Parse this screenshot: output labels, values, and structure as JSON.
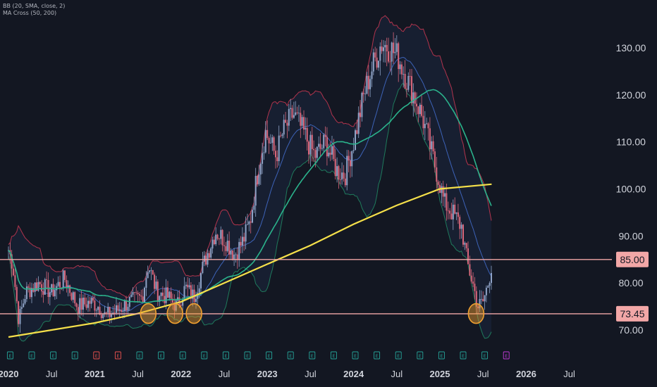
{
  "legend": {
    "bb": "BB (20, SMA, close, 2)",
    "ma": "MA Cross (50, 200)"
  },
  "colors": {
    "background": "#131722",
    "candle_up": "#8fa3c7",
    "candle_down": "#d9667a",
    "bb_upper": "#b2344d",
    "bb_lower": "#1f7a5c",
    "bb_basis": "#3d63b8",
    "bb_fill": "#1a2437",
    "ma_fast": "#2bb38c",
    "ma_slow": "#f5e04a",
    "level_line": "#f2a7a7",
    "highlight": "#f0a030",
    "earn_green": "#26a69a",
    "earn_red": "#ef5350",
    "earn_purple": "#c63bdc"
  },
  "chart_data": {
    "type": "candlestick",
    "y_range": [
      65,
      138
    ],
    "y_ticks": [
      "130.00",
      "120.00",
      "110.00",
      "100.00",
      "90.00",
      "80.00",
      "70.00"
    ],
    "y_tick_values": [
      130,
      120,
      110,
      100,
      90,
      80,
      70
    ],
    "x_range": [
      "2020-01",
      "2026-12"
    ],
    "x_ticks": [
      {
        "label": "2020",
        "t": 2020.0,
        "major": true
      },
      {
        "label": "Jul",
        "t": 2020.5,
        "major": false
      },
      {
        "label": "2021",
        "t": 2021.0,
        "major": true
      },
      {
        "label": "Jul",
        "t": 2021.5,
        "major": false
      },
      {
        "label": "2022",
        "t": 2022.0,
        "major": true
      },
      {
        "label": "Jul",
        "t": 2022.5,
        "major": false
      },
      {
        "label": "2023",
        "t": 2023.0,
        "major": true
      },
      {
        "label": "Jul",
        "t": 2023.5,
        "major": false
      },
      {
        "label": "2024",
        "t": 2024.0,
        "major": true
      },
      {
        "label": "Jul",
        "t": 2024.5,
        "major": false
      },
      {
        "label": "2025",
        "t": 2025.0,
        "major": true
      },
      {
        "label": "Jul",
        "t": 2025.5,
        "major": false
      },
      {
        "label": "2026",
        "t": 2026.0,
        "major": true
      },
      {
        "label": "Jul",
        "t": 2026.5,
        "major": false
      }
    ],
    "price_path": [
      [
        2020.0,
        87
      ],
      [
        2020.05,
        84
      ],
      [
        2020.12,
        72
      ],
      [
        2020.2,
        78
      ],
      [
        2020.35,
        80
      ],
      [
        2020.5,
        78
      ],
      [
        2020.65,
        81
      ],
      [
        2020.8,
        75
      ],
      [
        2020.95,
        76
      ],
      [
        2021.05,
        75
      ],
      [
        2021.12,
        73
      ],
      [
        2021.25,
        74
      ],
      [
        2021.4,
        76
      ],
      [
        2021.55,
        77
      ],
      [
        2021.62,
        84
      ],
      [
        2021.72,
        78
      ],
      [
        2021.85,
        77
      ],
      [
        2021.95,
        75
      ],
      [
        2022.05,
        79
      ],
      [
        2022.15,
        77
      ],
      [
        2022.28,
        85
      ],
      [
        2022.4,
        91
      ],
      [
        2022.52,
        89
      ],
      [
        2022.62,
        86
      ],
      [
        2022.72,
        89
      ],
      [
        2022.8,
        93
      ],
      [
        2022.9,
        105
      ],
      [
        2022.98,
        112
      ],
      [
        2023.1,
        107
      ],
      [
        2023.18,
        112
      ],
      [
        2023.3,
        116
      ],
      [
        2023.42,
        112
      ],
      [
        2023.55,
        107
      ],
      [
        2023.68,
        110
      ],
      [
        2023.8,
        104
      ],
      [
        2023.9,
        103
      ],
      [
        2024.0,
        110
      ],
      [
        2024.12,
        120
      ],
      [
        2024.22,
        126
      ],
      [
        2024.32,
        131
      ],
      [
        2024.42,
        130
      ],
      [
        2024.52,
        128
      ],
      [
        2024.6,
        124
      ],
      [
        2024.7,
        120
      ],
      [
        2024.8,
        115
      ],
      [
        2024.9,
        108
      ],
      [
        2025.0,
        101
      ],
      [
        2025.05,
        97
      ],
      [
        2025.1,
        96
      ],
      [
        2025.18,
        94
      ],
      [
        2025.25,
        92
      ],
      [
        2025.32,
        84
      ],
      [
        2025.38,
        80
      ],
      [
        2025.44,
        75
      ],
      [
        2025.5,
        76
      ],
      [
        2025.56,
        80
      ],
      [
        2025.6,
        84
      ]
    ],
    "horizontal_levels": [
      {
        "label": "85.00",
        "value": 85.0
      },
      {
        "label": "73.45",
        "value": 73.45
      }
    ],
    "ma_slow_path": [
      [
        2020.0,
        68.5
      ],
      [
        2020.5,
        70
      ],
      [
        2021.0,
        71.5
      ],
      [
        2021.5,
        73.5
      ],
      [
        2022.0,
        76
      ],
      [
        2022.5,
        80
      ],
      [
        2023.0,
        84
      ],
      [
        2023.5,
        88
      ],
      [
        2024.0,
        92.5
      ],
      [
        2024.5,
        96.5
      ],
      [
        2025.0,
        100
      ],
      [
        2025.6,
        101
      ]
    ],
    "highlight_circles": [
      {
        "t": 2021.62,
        "v": 73.5
      },
      {
        "t": 2021.93,
        "v": 73.5
      },
      {
        "t": 2022.15,
        "v": 73.5
      },
      {
        "t": 2025.42,
        "v": 73.5
      }
    ],
    "earnings_markers": [
      {
        "t": 2020.02,
        "kind": "green"
      },
      {
        "t": 2020.27,
        "kind": "green"
      },
      {
        "t": 2020.52,
        "kind": "green"
      },
      {
        "t": 2020.77,
        "kind": "green"
      },
      {
        "t": 2021.02,
        "kind": "red"
      },
      {
        "t": 2021.27,
        "kind": "red"
      },
      {
        "t": 2021.52,
        "kind": "green"
      },
      {
        "t": 2021.77,
        "kind": "green"
      },
      {
        "t": 2022.02,
        "kind": "green"
      },
      {
        "t": 2022.27,
        "kind": "green"
      },
      {
        "t": 2022.52,
        "kind": "green"
      },
      {
        "t": 2022.77,
        "kind": "green"
      },
      {
        "t": 2023.02,
        "kind": "green"
      },
      {
        "t": 2023.27,
        "kind": "green"
      },
      {
        "t": 2023.52,
        "kind": "green"
      },
      {
        "t": 2023.77,
        "kind": "green"
      },
      {
        "t": 2024.02,
        "kind": "green"
      },
      {
        "t": 2024.27,
        "kind": "green"
      },
      {
        "t": 2024.52,
        "kind": "green"
      },
      {
        "t": 2024.77,
        "kind": "green"
      },
      {
        "t": 2025.02,
        "kind": "green"
      },
      {
        "t": 2025.27,
        "kind": "green"
      },
      {
        "t": 2025.52,
        "kind": "green"
      },
      {
        "t": 2025.77,
        "kind": "purple"
      }
    ],
    "earnings_label": "E"
  }
}
